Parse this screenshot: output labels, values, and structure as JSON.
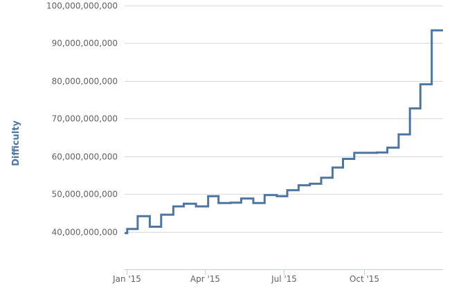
{
  "chart_data": {
    "type": "line",
    "step": true,
    "title": "",
    "xlabel": "",
    "ylabel": "Difficulty",
    "xlim": [
      "2014-12-30",
      "2015-12-31"
    ],
    "ylim": [
      30000000000,
      100000000000
    ],
    "y_ticks": [
      40000000000,
      50000000000,
      60000000000,
      70000000000,
      80000000000,
      90000000000,
      100000000000
    ],
    "y_tick_labels": [
      "40,000,000,000",
      "50,000,000,000",
      "60,000,000,000",
      "70,000,000,000",
      "80,000,000,000",
      "90,000,000,000",
      "100,000,000,000"
    ],
    "x_ticks": [
      "2015-01-01",
      "2015-04-01",
      "2015-07-01",
      "2015-10-01"
    ],
    "x_tick_labels": [
      "Jan '15",
      "Apr '15",
      "Jul '15",
      "Oct '15"
    ],
    "grid": {
      "y": true,
      "x": false
    },
    "line_color": "#4d759e",
    "series": [
      {
        "x": [
          "2014-12-30",
          "2015-01-02",
          "2015-01-14",
          "2015-01-28",
          "2015-02-10",
          "2015-02-24",
          "2015-03-08",
          "2015-03-22",
          "2015-04-05",
          "2015-04-17",
          "2015-05-01",
          "2015-05-13",
          "2015-05-27",
          "2015-06-09",
          "2015-06-23",
          "2015-07-05",
          "2015-07-18",
          "2015-07-31",
          "2015-08-13",
          "2015-08-26",
          "2015-09-07",
          "2015-09-20",
          "2015-10-02",
          "2015-10-16",
          "2015-10-28",
          "2015-11-10",
          "2015-11-23",
          "2015-12-05",
          "2015-12-18",
          "2015-12-31"
        ],
        "y": [
          39600000000,
          40700000000,
          44100000000,
          41300000000,
          44500000000,
          46700000000,
          47400000000,
          46700000000,
          49400000000,
          47600000000,
          47700000000,
          48800000000,
          47600000000,
          49700000000,
          49400000000,
          51000000000,
          52300000000,
          52700000000,
          54300000000,
          57000000000,
          59300000000,
          60900000000,
          60900000000,
          61000000000,
          62300000000,
          65800000000,
          72700000000,
          79100000000,
          93400000000,
          93400000000
        ]
      }
    ]
  }
}
